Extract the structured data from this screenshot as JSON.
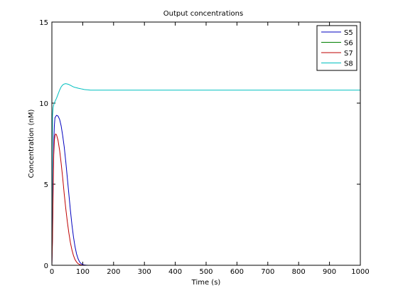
{
  "chart_data": {
    "type": "line",
    "title": "Output concentrations",
    "xlabel": "Time (s)",
    "ylabel": "Concentration (nM)",
    "xlim": [
      0,
      1000
    ],
    "ylim": [
      0,
      15
    ],
    "xticks": [
      0,
      100,
      200,
      300,
      400,
      500,
      600,
      700,
      800,
      900,
      1000
    ],
    "yticks": [
      0,
      5,
      10,
      15
    ],
    "grid": false,
    "legend_position": "top-right",
    "series": [
      {
        "name": "S5",
        "color": "#0000bf",
        "x": [
          0,
          2,
          4,
          6,
          8,
          10,
          15,
          20,
          25,
          30,
          35,
          40,
          45,
          50,
          55,
          60,
          65,
          70,
          75,
          80,
          85,
          90,
          95,
          100,
          105,
          110,
          115,
          120,
          130,
          150,
          200,
          300,
          400,
          500,
          520
        ],
        "y": [
          0,
          2.0,
          5.2,
          7.5,
          8.6,
          9.1,
          9.25,
          9.2,
          9.0,
          8.6,
          8.0,
          7.3,
          6.4,
          5.4,
          4.4,
          3.4,
          2.5,
          1.75,
          1.15,
          0.7,
          0.4,
          0.2,
          0.1,
          0.05,
          0.02,
          0.01,
          0.005,
          0.002,
          0,
          0,
          0,
          0,
          0,
          0,
          0
        ]
      },
      {
        "name": "S6",
        "color": "#007f00",
        "x": [
          0,
          520
        ],
        "y": [
          0,
          0
        ]
      },
      {
        "name": "S7",
        "color": "#bf0000",
        "x": [
          0,
          2,
          4,
          6,
          8,
          10,
          12,
          15,
          20,
          25,
          30,
          35,
          40,
          45,
          50,
          55,
          60,
          65,
          70,
          75,
          80,
          85,
          90,
          95,
          100,
          105,
          110,
          115,
          120,
          130,
          150,
          200,
          300,
          400,
          500,
          520
        ],
        "y": [
          0,
          1.5,
          4.5,
          6.8,
          7.7,
          8.0,
          8.1,
          8.05,
          7.7,
          7.1,
          6.3,
          5.4,
          4.4,
          3.5,
          2.7,
          2.0,
          1.4,
          0.95,
          0.6,
          0.35,
          0.2,
          0.1,
          0.05,
          0.02,
          0.01,
          0.005,
          0,
          0,
          0,
          0,
          0,
          0,
          0,
          0,
          0,
          0
        ]
      },
      {
        "name": "S8",
        "color": "#00bfbf",
        "x": [
          0,
          2,
          4,
          6,
          8,
          10,
          15,
          20,
          25,
          30,
          35,
          40,
          45,
          50,
          55,
          60,
          65,
          70,
          75,
          80,
          85,
          90,
          95,
          100,
          105,
          110,
          115,
          120,
          125,
          130,
          140,
          150,
          200,
          300,
          400,
          500,
          600,
          700,
          800,
          900,
          1000
        ],
        "y": [
          0,
          9.2,
          9.7,
          9.9,
          10.0,
          10.1,
          10.3,
          10.55,
          10.8,
          11.0,
          11.12,
          11.18,
          11.2,
          11.18,
          11.15,
          11.1,
          11.05,
          11.0,
          10.97,
          10.95,
          10.92,
          10.9,
          10.88,
          10.86,
          10.84,
          10.83,
          10.82,
          10.81,
          10.8,
          10.8,
          10.8,
          10.8,
          10.8,
          10.8,
          10.8,
          10.8,
          10.8,
          10.8,
          10.8,
          10.8,
          10.8
        ]
      }
    ]
  }
}
